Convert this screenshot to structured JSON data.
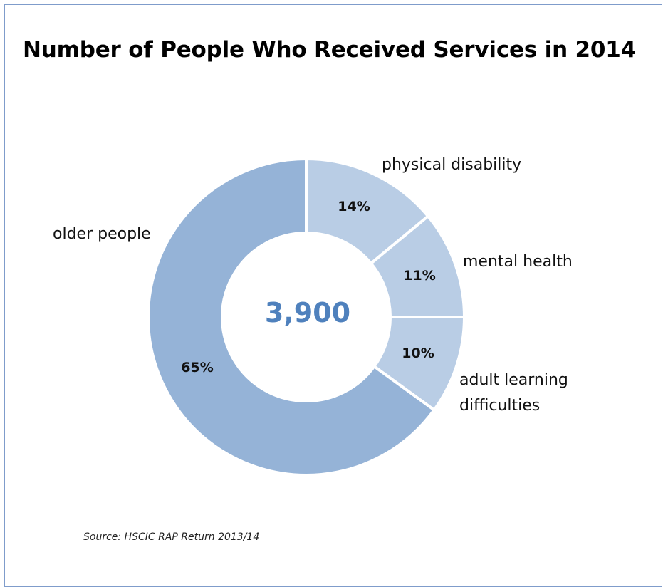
{
  "chart_data": {
    "type": "pie",
    "subtype": "donut",
    "title": "Number of People Who Received Services in 2014",
    "center_label": "3,900",
    "slices": [
      {
        "label": "physical disability",
        "value": 14,
        "value_label": "14%",
        "color": "#b9cde5"
      },
      {
        "label": "mental health",
        "value": 11,
        "value_label": "11%",
        "color": "#b9cde5"
      },
      {
        "label": "adult learning difficulties",
        "value": 10,
        "value_label": "10%",
        "color": "#b9cde5"
      },
      {
        "label": "older people",
        "value": 65,
        "value_label": "65%",
        "color": "#95b3d7"
      }
    ],
    "source": "Source: HSCIC RAP Return 2013/14",
    "center_color": "#4f81bd"
  }
}
